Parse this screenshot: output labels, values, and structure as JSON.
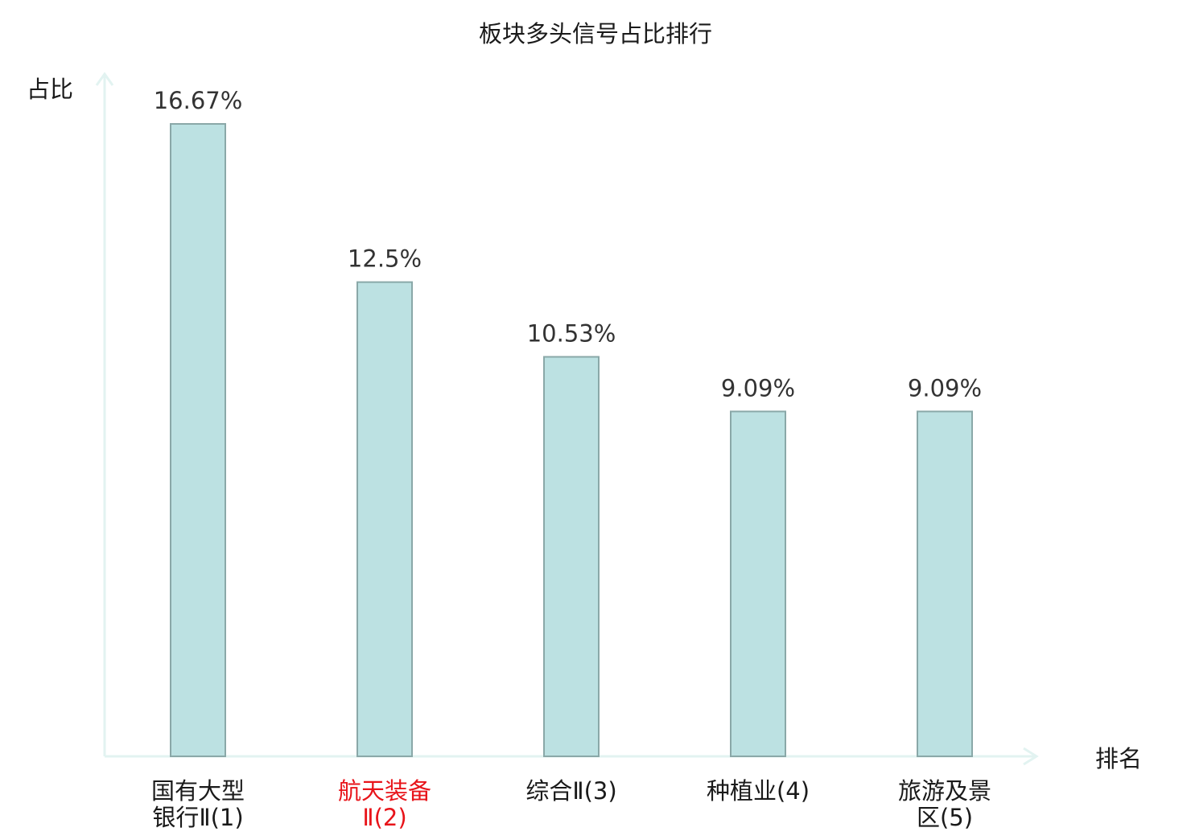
{
  "chart_data": {
    "type": "bar",
    "title": "板块多头信号占比排行",
    "xlabel": "排名",
    "ylabel": "占比",
    "categories": [
      {
        "lines": [
          "国有大型",
          "银行Ⅱ(1)"
        ],
        "highlight": false
      },
      {
        "lines": [
          "航天装备",
          "Ⅱ(2)"
        ],
        "highlight": true
      },
      {
        "lines": [
          "综合Ⅱ(3)"
        ],
        "highlight": false
      },
      {
        "lines": [
          "种植业(4)"
        ],
        "highlight": false
      },
      {
        "lines": [
          "旅游及景",
          "区(5)"
        ],
        "highlight": false
      }
    ],
    "values": [
      16.67,
      12.5,
      10.53,
      9.09,
      9.09
    ],
    "value_labels": [
      "16.67%",
      "12.5%",
      "10.53%",
      "9.09%",
      "9.09%"
    ],
    "ylim": [
      0,
      16.67
    ],
    "grid": false,
    "colors": {
      "bar_fill": "#bce1e2",
      "bar_stroke": "#8aa8a8",
      "axis": "#e2f3f1",
      "highlight_text": "#e8141a",
      "text": "#1a1a1a",
      "value_text": "#333333"
    }
  }
}
